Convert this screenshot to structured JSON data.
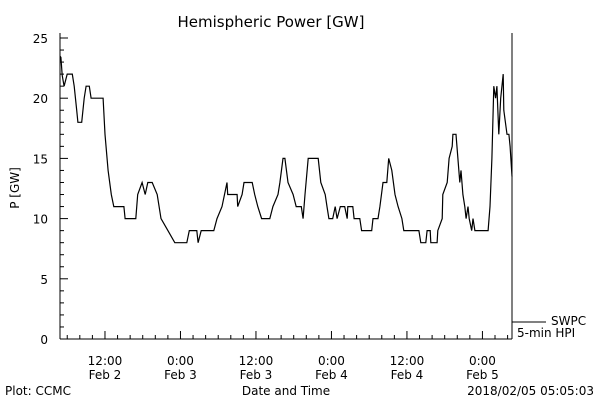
{
  "chart_data": {
    "type": "line",
    "title": "Hemispheric Power [GW]",
    "xlabel": "Date and Time",
    "ylabel": "P [GW]",
    "x_unit": "hours since 2018/02/02 00:00",
    "xlim": [
      4.85,
      76.7
    ],
    "ylim": [
      0,
      25
    ],
    "yticks": [
      0,
      5,
      10,
      15,
      20,
      25
    ],
    "xticks": [
      {
        "h": 12,
        "time": "12:00",
        "date": "Feb 2"
      },
      {
        "h": 24,
        "time": "0:00",
        "date": "Feb 3"
      },
      {
        "h": 36,
        "time": "12:00",
        "date": "Feb 3"
      },
      {
        "h": 48,
        "time": "0:00",
        "date": "Feb 4"
      },
      {
        "h": 60,
        "time": "12:00",
        "date": "Feb 4"
      },
      {
        "h": 72,
        "time": "0:00",
        "date": "Feb 5"
      }
    ],
    "legend": {
      "position": "right-bottom",
      "source": "SWPC",
      "series": "5-min HPI"
    },
    "series": [
      {
        "name": "5-min HPI",
        "x": [
          4.85,
          5.0,
          5.2,
          5.5,
          6.0,
          6.8,
          7.1,
          7.5,
          7.7,
          8.3,
          8.7,
          9.0,
          9.5,
          9.8,
          11.7,
          12.0,
          12.5,
          13.0,
          13.4,
          15.0,
          15.2,
          16.9,
          17.2,
          17.9,
          18.4,
          18.8,
          19.5,
          20.3,
          20.9,
          22.0,
          23.1,
          25.0,
          25.4,
          26.6,
          26.8,
          27.3,
          29.3,
          29.8,
          30.6,
          31.4,
          31.5,
          33.0,
          33.1,
          33.8,
          34.1,
          35.4,
          35.8,
          36.3,
          36.9,
          38.2,
          38.7,
          39.5,
          39.8,
          40.3,
          40.6,
          41.1,
          41.9,
          42.4,
          43.2,
          43.5,
          43.8,
          44.3,
          45.9,
          46.3,
          47.0,
          47.3,
          47.6,
          48.2,
          48.6,
          48.9,
          49.4,
          50.1,
          50.5,
          50.6,
          51.4,
          51.6,
          52.5,
          52.8,
          54.4,
          54.6,
          55.4,
          55.7,
          56.2,
          56.8,
          57.1,
          57.6,
          58.1,
          58.6,
          59.2,
          59.5,
          61.9,
          62.2,
          63.0,
          63.2,
          63.7,
          63.8,
          64.8,
          64.9,
          65.6,
          65.7,
          66.4,
          66.7,
          67.2,
          67.3,
          67.8,
          68.1,
          68.4,
          68.6,
          68.9,
          69.2,
          69.4,
          69.7,
          69.9,
          70.3,
          70.5,
          70.8,
          72.9,
          73.2,
          73.5,
          73.8,
          74.1,
          74.3,
          74.6,
          74.9,
          75.3,
          75.4,
          75.9,
          76.2,
          76.4,
          76.7
        ],
        "y": [
          23.5,
          23.4,
          21.9,
          21,
          22,
          22,
          21,
          19,
          18,
          18,
          20,
          21,
          21,
          20,
          20,
          17,
          14,
          12,
          11,
          11,
          10,
          10,
          12,
          13,
          12,
          13,
          13,
          12,
          10,
          9,
          8,
          8,
          9,
          9,
          8,
          9,
          9,
          10,
          11,
          13,
          12,
          12,
          11,
          12,
          13,
          13,
          12,
          11,
          10,
          10,
          11,
          12,
          13,
          15,
          15,
          13,
          12,
          11,
          11,
          10,
          12,
          15,
          15,
          13,
          12,
          11,
          10,
          10,
          11,
          10,
          11,
          11,
          10,
          11,
          11,
          10,
          10,
          9,
          9,
          10,
          10,
          11,
          13,
          13,
          15,
          14,
          12,
          11,
          10,
          9,
          9,
          8,
          8,
          9,
          9,
          8,
          8,
          9,
          10,
          12,
          13,
          15,
          16,
          17,
          17,
          15,
          13,
          14,
          12,
          11,
          10,
          11,
          10,
          9,
          10,
          9,
          9,
          11,
          15,
          21,
          20,
          21,
          17,
          20,
          22,
          19,
          17,
          17,
          16,
          13.5
        ]
      }
    ]
  },
  "footer": {
    "plot_credit": "Plot: CCMC",
    "timestamp": "2018/02/05 05:05:03"
  }
}
